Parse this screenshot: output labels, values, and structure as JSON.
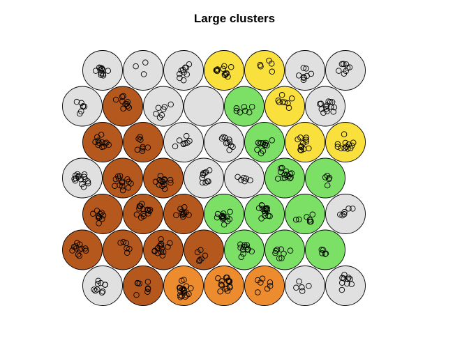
{
  "chart_data": {
    "type": "som-hexagonal-grid",
    "title": "Large clusters",
    "grid": {
      "columns": 7,
      "rows": 7,
      "topology": "hexagonal"
    },
    "cluster_colors": {
      "grey": "#e0e0e0",
      "brown": "#b5581e",
      "orange": "#ed8b2f",
      "green": "#7be065",
      "yellow": "#f9e03d",
      "blank": "#e0e0e0"
    },
    "rows": [
      {
        "row": 7,
        "cells": [
          {
            "col": 1,
            "cluster": "grey",
            "n": 12
          },
          {
            "col": 2,
            "cluster": "grey",
            "n": 3
          },
          {
            "col": 3,
            "cluster": "grey",
            "n": 10
          },
          {
            "col": 4,
            "cluster": "yellow",
            "n": 12
          },
          {
            "col": 5,
            "cluster": "yellow",
            "n": 5
          },
          {
            "col": 6,
            "cluster": "grey",
            "n": 8
          },
          {
            "col": 7,
            "cluster": "grey",
            "n": 8
          }
        ]
      },
      {
        "row": 6,
        "cells": [
          {
            "col": 1,
            "cluster": "grey",
            "n": 7
          },
          {
            "col": 2,
            "cluster": "brown",
            "n": 10
          },
          {
            "col": 3,
            "cluster": "grey",
            "n": 7
          },
          {
            "col": 4,
            "cluster": "blank",
            "n": 0
          },
          {
            "col": 5,
            "cluster": "green",
            "n": 7
          },
          {
            "col": 6,
            "cluster": "yellow",
            "n": 8
          },
          {
            "col": 7,
            "cluster": "grey",
            "n": 14
          }
        ]
      },
      {
        "row": 5,
        "cells": [
          {
            "col": 1,
            "cluster": "brown",
            "n": 12
          },
          {
            "col": 2,
            "cluster": "brown",
            "n": 8
          },
          {
            "col": 3,
            "cluster": "grey",
            "n": 8
          },
          {
            "col": 4,
            "cluster": "grey",
            "n": 10
          },
          {
            "col": 5,
            "cluster": "green",
            "n": 12
          },
          {
            "col": 6,
            "cluster": "yellow",
            "n": 12
          },
          {
            "col": 7,
            "cluster": "yellow",
            "n": 12
          }
        ]
      },
      {
        "row": 4,
        "cells": [
          {
            "col": 1,
            "cluster": "grey",
            "n": 15
          },
          {
            "col": 2,
            "cluster": "brown",
            "n": 14
          },
          {
            "col": 3,
            "cluster": "brown",
            "n": 14
          },
          {
            "col": 4,
            "cluster": "grey",
            "n": 10
          },
          {
            "col": 5,
            "cluster": "grey",
            "n": 6
          },
          {
            "col": 6,
            "cluster": "green",
            "n": 14
          },
          {
            "col": 7,
            "cluster": "green",
            "n": 5
          }
        ]
      },
      {
        "row": 3,
        "cells": [
          {
            "col": 1,
            "cluster": "brown",
            "n": 10
          },
          {
            "col": 2,
            "cluster": "brown",
            "n": 14
          },
          {
            "col": 3,
            "cluster": "brown",
            "n": 10
          },
          {
            "col": 4,
            "cluster": "green",
            "n": 14
          },
          {
            "col": 5,
            "cluster": "green",
            "n": 15
          },
          {
            "col": 6,
            "cluster": "green",
            "n": 7
          },
          {
            "col": 7,
            "cluster": "grey",
            "n": 6
          }
        ]
      },
      {
        "row": 2,
        "cells": [
          {
            "col": 1,
            "cluster": "brown",
            "n": 12
          },
          {
            "col": 2,
            "cluster": "brown",
            "n": 6
          },
          {
            "col": 3,
            "cluster": "brown",
            "n": 14
          },
          {
            "col": 4,
            "cluster": "brown",
            "n": 6
          },
          {
            "col": 5,
            "cluster": "green",
            "n": 12
          },
          {
            "col": 6,
            "cluster": "green",
            "n": 8
          },
          {
            "col": 7,
            "cluster": "green",
            "n": 5
          }
        ]
      },
      {
        "row": 1,
        "cells": [
          {
            "col": 1,
            "cluster": "grey",
            "n": 10
          },
          {
            "col": 2,
            "cluster": "brown",
            "n": 8
          },
          {
            "col": 3,
            "cluster": "orange",
            "n": 18
          },
          {
            "col": 4,
            "cluster": "orange",
            "n": 16
          },
          {
            "col": 5,
            "cluster": "orange",
            "n": 7
          },
          {
            "col": 6,
            "cluster": "grey",
            "n": 5
          },
          {
            "col": 7,
            "cluster": "grey",
            "n": 10
          }
        ]
      }
    ]
  }
}
